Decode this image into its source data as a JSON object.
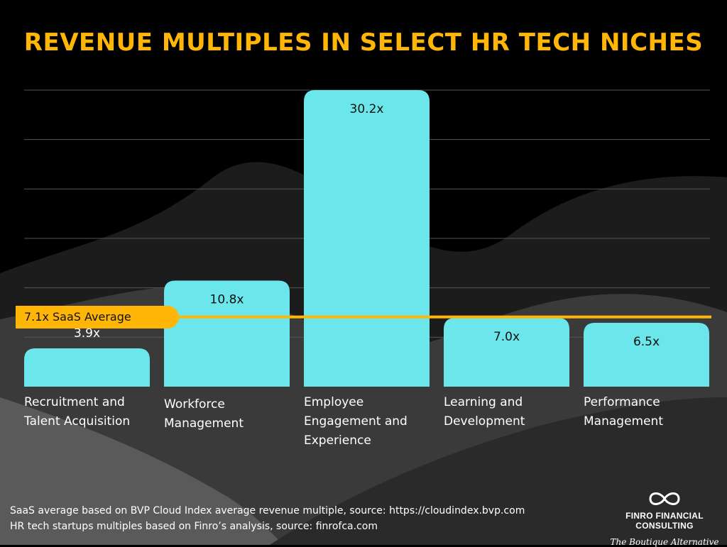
{
  "chart_data": {
    "type": "bar",
    "title": "REVENUE MULTIPLES IN SELECT HR TECH NICHES",
    "categories": [
      [
        "Recruitment and",
        "Talent Acquisition"
      ],
      [
        "Workforce",
        "Management"
      ],
      [
        "Employee",
        "Engagement and",
        "Experience"
      ],
      [
        "Learning and",
        "Development"
      ],
      [
        "Performance",
        "Management"
      ]
    ],
    "values": [
      3.9,
      10.8,
      30.2,
      7.0,
      6.5
    ],
    "data_labels": [
      "3.9x",
      "10.8x",
      "30.2x",
      "7.0x",
      "6.5x"
    ],
    "reference_line": {
      "value": 7.1,
      "label": "7.1x SaaS Average"
    },
    "ylim": [
      0,
      30.2
    ],
    "grid": true,
    "colors": {
      "bar": "#6be6ea",
      "accent": "#ffb606",
      "background": "#000000"
    }
  },
  "footer": {
    "line1": "SaaS average based on BVP Cloud Index average revenue multiple, source: https://cloudindex.bvp.com",
    "line2": "HR tech startups multiples based on Finro’s analysis, source: finrofca.com"
  },
  "brand": {
    "name": "FINRO FINANCIAL CONSULTING",
    "tagline": "The Boutique Alternative",
    "logo_icon": "infinity-icon"
  }
}
